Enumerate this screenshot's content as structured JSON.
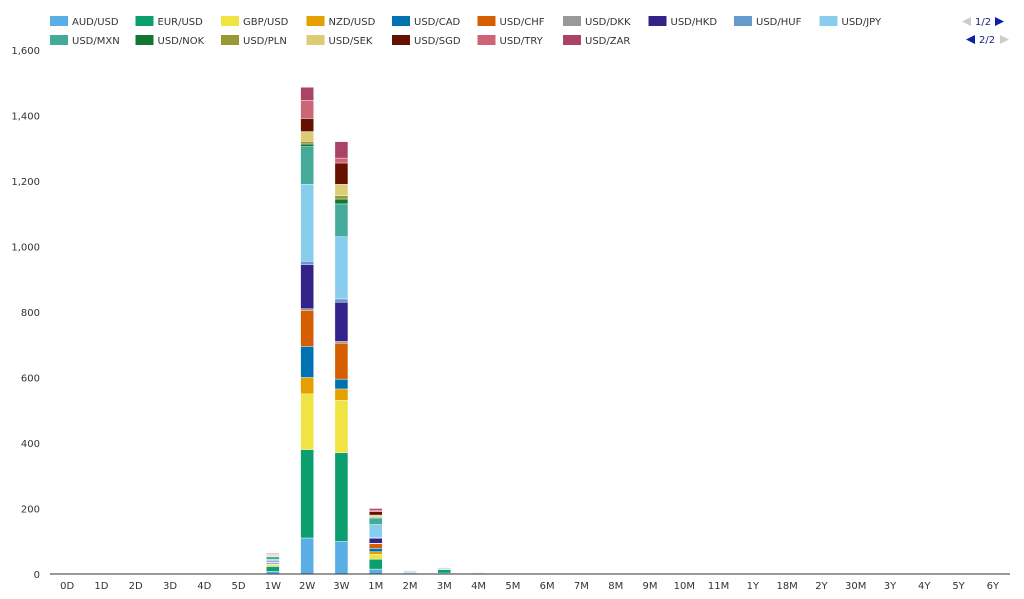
{
  "chart_data": {
    "type": "bar",
    "stacked": true,
    "categories": [
      "0D",
      "1D",
      "2D",
      "3D",
      "4D",
      "5D",
      "1W",
      "2W",
      "3W",
      "1M",
      "2M",
      "3M",
      "4M",
      "5M",
      "6M",
      "7M",
      "8M",
      "9M",
      "10M",
      "11M",
      "1Y",
      "18M",
      "2Y",
      "30M",
      "3Y",
      "4Y",
      "5Y",
      "6Y"
    ],
    "ylim": [
      0,
      1600
    ],
    "yticks": [
      0,
      200,
      400,
      600,
      800,
      1000,
      1200,
      1400,
      1600
    ],
    "ytick_labels": [
      "0",
      "200",
      "400",
      "600",
      "800",
      "1,000",
      "1,200",
      "1,400",
      "1,600"
    ],
    "grid": false,
    "legend_position": "top",
    "series": [
      {
        "name": "AUD/USD",
        "color": "#5aaee6",
        "values": [
          0,
          0,
          0,
          0,
          0,
          0,
          8,
          110,
          100,
          15,
          3,
          3,
          1,
          0,
          0,
          0,
          0,
          0,
          0,
          0,
          0,
          0,
          0,
          0,
          0,
          0,
          0,
          0
        ]
      },
      {
        "name": "EUR/USD",
        "color": "#0b9e6f",
        "values": [
          0,
          0,
          0,
          0,
          0,
          0,
          15,
          270,
          270,
          30,
          2,
          10,
          2,
          0,
          0,
          0,
          0,
          0,
          0,
          0,
          0,
          0,
          0,
          0,
          0,
          0,
          0,
          0
        ]
      },
      {
        "name": "GBP/USD",
        "color": "#f0e442",
        "values": [
          0,
          0,
          0,
          0,
          0,
          0,
          5,
          170,
          160,
          15,
          0,
          0,
          0,
          0,
          0,
          0,
          0,
          0,
          0,
          0,
          0,
          0,
          0,
          0,
          0,
          0,
          0,
          0
        ]
      },
      {
        "name": "NZD/USD",
        "color": "#e69f00",
        "values": [
          0,
          0,
          0,
          0,
          0,
          0,
          2,
          50,
          35,
          8,
          0,
          0,
          0,
          0,
          0,
          0,
          0,
          0,
          0,
          0,
          0,
          0,
          0,
          0,
          0,
          0,
          0,
          0
        ]
      },
      {
        "name": "USD/CAD",
        "color": "#0072b2",
        "values": [
          0,
          0,
          0,
          0,
          0,
          0,
          3,
          95,
          30,
          10,
          1,
          2,
          0,
          0,
          0,
          0,
          0,
          0,
          0,
          0,
          0,
          0,
          0,
          0,
          0,
          0,
          0,
          0
        ]
      },
      {
        "name": "USD/CHF",
        "color": "#d55e00",
        "values": [
          0,
          0,
          0,
          0,
          0,
          0,
          2,
          110,
          110,
          15,
          0,
          0,
          0,
          0,
          0,
          0,
          0,
          0,
          0,
          0,
          0,
          0,
          0,
          0,
          0,
          0,
          0,
          0
        ]
      },
      {
        "name": "USD/DKK",
        "color": "#999999",
        "values": [
          0,
          0,
          0,
          0,
          0,
          0,
          1,
          5,
          5,
          1,
          0,
          0,
          0,
          0,
          0,
          0,
          0,
          0,
          0,
          0,
          0,
          0,
          0,
          0,
          0,
          0,
          0,
          0
        ]
      },
      {
        "name": "USD/HKD",
        "color": "#332288",
        "values": [
          0,
          0,
          0,
          0,
          0,
          0,
          3,
          135,
          120,
          15,
          0,
          0,
          0,
          0,
          0,
          0,
          0,
          0,
          0,
          0,
          0,
          0,
          0,
          0,
          0,
          0,
          0,
          0
        ]
      },
      {
        "name": "USD/HUF",
        "color": "#6699cc",
        "values": [
          0,
          0,
          0,
          0,
          0,
          0,
          1,
          10,
          10,
          2,
          0,
          0,
          0,
          0,
          0,
          0,
          0,
          0,
          0,
          0,
          0,
          0,
          0,
          0,
          0,
          0,
          0,
          0
        ]
      },
      {
        "name": "USD/JPY",
        "color": "#88ccee",
        "values": [
          0,
          0,
          0,
          0,
          0,
          0,
          5,
          235,
          190,
          40,
          2,
          2,
          0,
          0,
          0,
          0,
          0,
          0,
          0,
          0,
          0,
          0,
          0,
          0,
          0,
          0,
          0,
          0
        ]
      },
      {
        "name": "USD/MXN",
        "color": "#44aa99",
        "values": [
          0,
          0,
          0,
          0,
          0,
          0,
          8,
          115,
          100,
          20,
          2,
          2,
          1,
          0,
          0,
          0,
          0,
          0,
          0,
          0,
          0,
          0,
          0,
          0,
          0,
          0,
          0,
          0
        ]
      },
      {
        "name": "USD/NOK",
        "color": "#117733",
        "values": [
          0,
          0,
          0,
          0,
          0,
          0,
          1,
          8,
          15,
          2,
          0,
          0,
          0,
          0,
          0,
          0,
          0,
          0,
          0,
          0,
          0,
          0,
          0,
          0,
          0,
          0,
          0,
          0
        ]
      },
      {
        "name": "USD/PLN",
        "color": "#999933",
        "values": [
          0,
          0,
          0,
          0,
          0,
          0,
          1,
          8,
          10,
          2,
          0,
          0,
          0,
          0,
          0,
          0,
          0,
          0,
          0,
          0,
          0,
          0,
          0,
          0,
          0,
          0,
          0,
          0
        ]
      },
      {
        "name": "USD/SEK",
        "color": "#ddcc77",
        "values": [
          0,
          0,
          0,
          0,
          0,
          0,
          2,
          30,
          35,
          5,
          0,
          0,
          0,
          0,
          0,
          0,
          0,
          0,
          0,
          0,
          0,
          0,
          0,
          0,
          0,
          0,
          0,
          0
        ]
      },
      {
        "name": "USD/SGD",
        "color": "#661100",
        "values": [
          0,
          0,
          0,
          0,
          0,
          0,
          2,
          40,
          65,
          10,
          0,
          0,
          0,
          0,
          0,
          0,
          0,
          0,
          0,
          0,
          0,
          0,
          0,
          0,
          0,
          0,
          0,
          0
        ]
      },
      {
        "name": "USD/TRY",
        "color": "#cc6677",
        "values": [
          0,
          0,
          0,
          0,
          0,
          0,
          2,
          55,
          15,
          5,
          0,
          0,
          0,
          0,
          0,
          0,
          0,
          0,
          0,
          0,
          0,
          0,
          0,
          0,
          0,
          0,
          0,
          0
        ]
      },
      {
        "name": "USD/ZAR",
        "color": "#aa4466",
        "values": [
          0,
          0,
          0,
          0,
          0,
          0,
          2,
          40,
          50,
          5,
          0,
          0,
          0,
          0,
          0,
          0,
          0,
          0,
          0,
          0,
          0,
          0,
          0,
          0,
          0,
          0,
          0,
          0
        ]
      }
    ]
  },
  "legend_pager": {
    "page_1_label": "1/2",
    "page_2_label": "2/2"
  }
}
